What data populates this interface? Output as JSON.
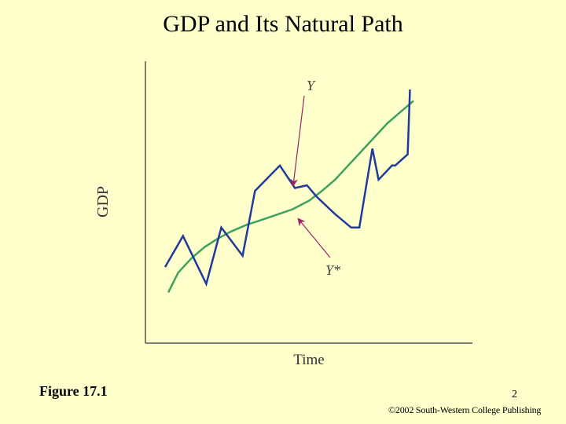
{
  "slide": {
    "title": "GDP and Its Natural Path",
    "figure_label": "Figure 17.1",
    "page_number": "2",
    "copyright": "©2002 South-Western College Publishing"
  },
  "colors": {
    "background": "#FFFFCC",
    "actual_gdp_line": "#1F3A9A",
    "natural_gdp_line": "#3FA060",
    "arrow": "#9A2463",
    "axis": "#555555"
  },
  "chart_data": {
    "type": "line",
    "title": "GDP and Its Natural Path",
    "xlabel": "Time",
    "ylabel": "GDP",
    "xlim": [
      0,
      100
    ],
    "ylim": [
      0,
      100
    ],
    "grid": false,
    "series": [
      {
        "name": "Y",
        "label": "Y",
        "x": [
          6,
          11.5,
          18.6,
          23.2,
          29.7,
          33.5,
          41.1,
          45.7,
          49.4,
          52.3,
          57.8,
          62.9,
          65.4,
          69.4,
          71.3,
          75.4,
          76.4,
          80.2,
          80.9
        ],
        "values": [
          27,
          38,
          21,
          41,
          31,
          54,
          63,
          55,
          56,
          52,
          46,
          41,
          41,
          69,
          58,
          63,
          63,
          67,
          90
        ]
      },
      {
        "name": "Y*",
        "label": "Y*",
        "x": [
          7,
          10,
          14,
          18,
          22,
          26,
          31,
          35,
          40,
          45,
          50,
          54,
          58,
          62,
          66,
          70,
          74,
          78,
          82
        ],
        "values": [
          18,
          25,
          30,
          34,
          37,
          39.5,
          42,
          43.5,
          45.5,
          47.5,
          50.5,
          54,
          58,
          63,
          68,
          73,
          78,
          82,
          86
        ]
      }
    ],
    "annotations": [
      {
        "text": "Y",
        "points_to": "Y",
        "point": [
          45.2,
          56
        ]
      },
      {
        "text": "Y*",
        "points_to": "Y*",
        "point": [
          46.8,
          44
        ]
      }
    ]
  }
}
